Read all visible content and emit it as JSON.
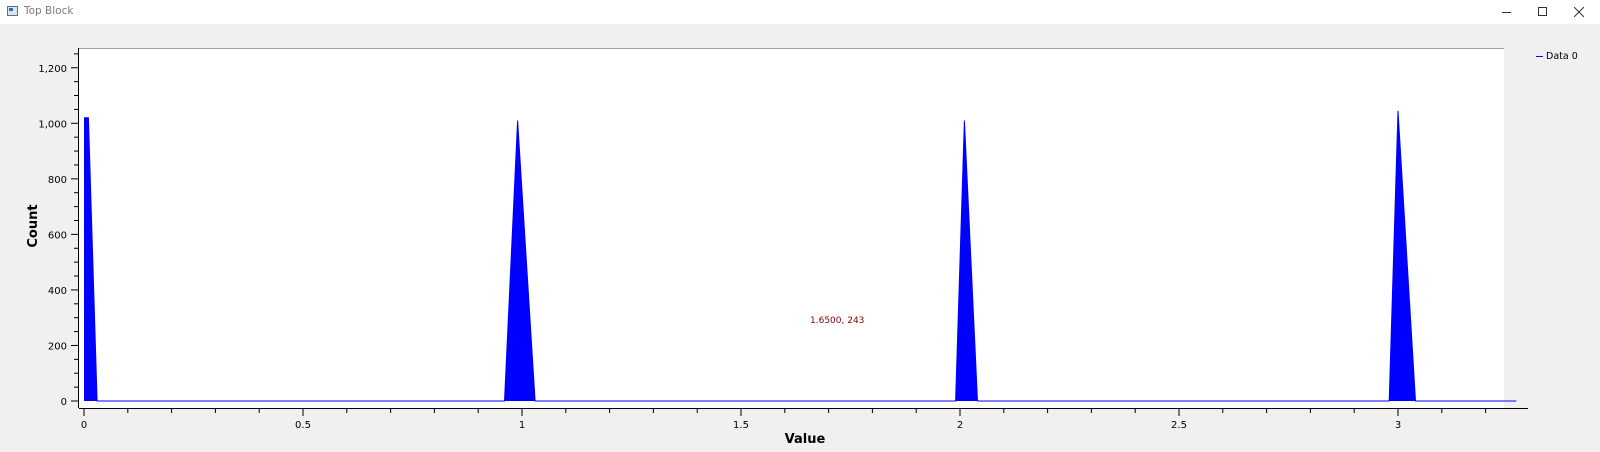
{
  "window": {
    "title": "Top Block",
    "icon": "window-app-icon",
    "controls": [
      "minimize-icon",
      "maximize-icon",
      "close-icon"
    ]
  },
  "readout": "1.6500, 243",
  "chart_data": {
    "type": "area",
    "title": "",
    "xlabel": "Value",
    "ylabel": "Count",
    "xlim": [
      0,
      3.3
    ],
    "ylim": [
      0,
      1280
    ],
    "x_ticks": [
      0,
      0.5,
      1,
      1.5,
      2,
      2.5,
      3
    ],
    "x_tick_labels": [
      "0",
      "0.5",
      "1",
      "1.5",
      "2",
      "2.5",
      "3"
    ],
    "y_ticks": [
      0,
      200,
      400,
      600,
      800,
      1000,
      1200
    ],
    "y_tick_labels": [
      "0",
      "200",
      "400",
      "600",
      "800",
      "1,000",
      "1,200"
    ],
    "grid": false,
    "legend_position": "right",
    "series": [
      {
        "name": "Data 0",
        "color": "#0000ff",
        "x": [
          0,
          0.01,
          0.03,
          0.96,
          0.99,
          1.03,
          1.99,
          2.01,
          2.04,
          2.98,
          3.0,
          3.04,
          3.27
        ],
        "values": [
          1020,
          1020,
          0,
          0,
          1010,
          0,
          0,
          1010,
          0,
          0,
          1045,
          0,
          0
        ]
      }
    ]
  }
}
